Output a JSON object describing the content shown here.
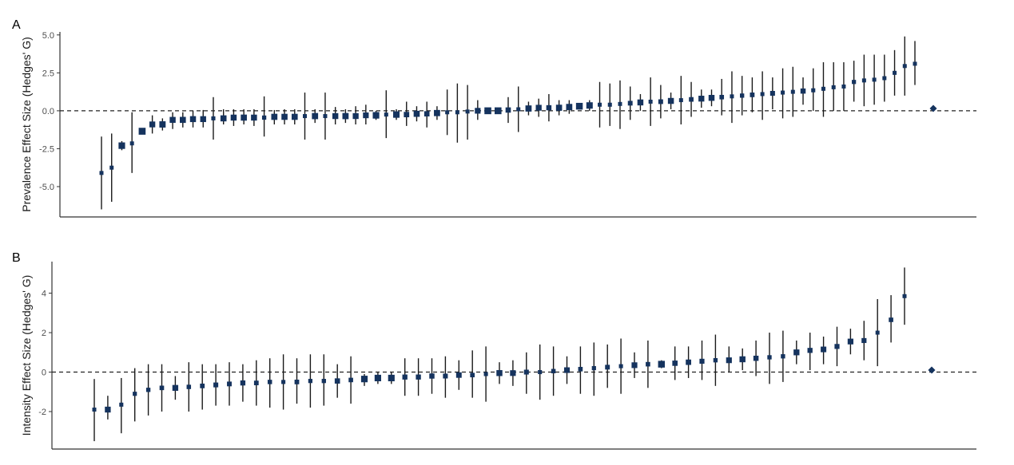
{
  "colors": {
    "point": "#15335e",
    "ci": "#1a1a1a",
    "axis": "#333333"
  },
  "chart_data": [
    {
      "type": "scatter",
      "panel": "A",
      "ylabel": "Prevalence Effect Size (Hedges' G)",
      "ylim": [
        -7,
        5.2
      ],
      "yticks": [
        5.0,
        2.5,
        0.0,
        -2.5,
        -5.0
      ],
      "ytick_labels": [
        "5.0",
        "2.5",
        "0.0",
        "-2.5",
        "-5.0"
      ],
      "reference_line": 0,
      "points": [
        {
          "y": -4.1,
          "lo": -6.5,
          "hi": -1.7
        },
        {
          "y": -3.75,
          "lo": -6.0,
          "hi": -1.5
        },
        {
          "y": -2.3,
          "lo": -2.6,
          "hi": -2.0
        },
        {
          "y": -2.15,
          "lo": -4.1,
          "hi": -0.1
        },
        {
          "y": -1.35,
          "lo": -1.45,
          "hi": -1.2
        },
        {
          "y": -0.9,
          "lo": -1.5,
          "hi": -0.3
        },
        {
          "y": -0.9,
          "lo": -1.3,
          "hi": -0.5
        },
        {
          "y": -0.6,
          "lo": -1.2,
          "hi": -0.1
        },
        {
          "y": -0.6,
          "lo": -1.1,
          "hi": -0.1
        },
        {
          "y": -0.55,
          "lo": -1.1,
          "hi": 0.0
        },
        {
          "y": -0.55,
          "lo": -1.1,
          "hi": 0.05
        },
        {
          "y": -0.5,
          "lo": -1.9,
          "hi": 0.9
        },
        {
          "y": -0.5,
          "lo": -0.9,
          "hi": 0.1
        },
        {
          "y": -0.45,
          "lo": -1.0,
          "hi": 0.1
        },
        {
          "y": -0.45,
          "lo": -0.9,
          "hi": 0.1
        },
        {
          "y": -0.45,
          "lo": -1.0,
          "hi": 0.1
        },
        {
          "y": -0.45,
          "lo": -1.7,
          "hi": 0.95
        },
        {
          "y": -0.4,
          "lo": -0.9,
          "hi": 0.05
        },
        {
          "y": -0.4,
          "lo": -0.9,
          "hi": 0.1
        },
        {
          "y": -0.4,
          "lo": -0.9,
          "hi": 0.1
        },
        {
          "y": -0.35,
          "lo": -1.9,
          "hi": 1.2
        },
        {
          "y": -0.35,
          "lo": -0.8,
          "hi": 0.1
        },
        {
          "y": -0.35,
          "lo": -1.9,
          "hi": 1.2
        },
        {
          "y": -0.35,
          "lo": -0.9,
          "hi": 0.25
        },
        {
          "y": -0.35,
          "lo": -0.8,
          "hi": 0.1
        },
        {
          "y": -0.35,
          "lo": -0.9,
          "hi": 0.3
        },
        {
          "y": -0.3,
          "lo": -0.9,
          "hi": 0.4
        },
        {
          "y": -0.3,
          "lo": -0.6,
          "hi": 0.0
        },
        {
          "y": -0.25,
          "lo": -1.8,
          "hi": 1.35
        },
        {
          "y": -0.25,
          "lo": -0.6,
          "hi": 0.1
        },
        {
          "y": -0.25,
          "lo": -1.0,
          "hi": 0.6
        },
        {
          "y": -0.2,
          "lo": -0.7,
          "hi": 0.3
        },
        {
          "y": -0.2,
          "lo": -1.1,
          "hi": 0.6
        },
        {
          "y": -0.15,
          "lo": -0.6,
          "hi": 0.3
        },
        {
          "y": -0.1,
          "lo": -1.6,
          "hi": 1.4
        },
        {
          "y": -0.1,
          "lo": -2.1,
          "hi": 1.8
        },
        {
          "y": -0.05,
          "lo": -1.9,
          "hi": 1.7
        },
        {
          "y": 0.0,
          "lo": -0.6,
          "hi": 0.7
        },
        {
          "y": 0.0,
          "lo": -0.15,
          "hi": 0.15
        },
        {
          "y": 0.0,
          "lo": -0.15,
          "hi": 0.15
        },
        {
          "y": 0.05,
          "lo": -0.8,
          "hi": 0.9
        },
        {
          "y": 0.1,
          "lo": -1.4,
          "hi": 1.6
        },
        {
          "y": 0.15,
          "lo": -0.3,
          "hi": 0.6
        },
        {
          "y": 0.2,
          "lo": -0.4,
          "hi": 0.8
        },
        {
          "y": 0.2,
          "lo": -0.7,
          "hi": 1.1
        },
        {
          "y": 0.2,
          "lo": -0.3,
          "hi": 0.7
        },
        {
          "y": 0.25,
          "lo": -0.2,
          "hi": 0.7
        },
        {
          "y": 0.3,
          "lo": 0.1,
          "hi": 0.5
        },
        {
          "y": 0.35,
          "lo": 0.0,
          "hi": 0.7
        },
        {
          "y": 0.4,
          "lo": -1.1,
          "hi": 1.9
        },
        {
          "y": 0.4,
          "lo": -1.0,
          "hi": 1.8
        },
        {
          "y": 0.45,
          "lo": -1.2,
          "hi": 2.0
        },
        {
          "y": 0.5,
          "lo": -0.6,
          "hi": 1.6
        },
        {
          "y": 0.55,
          "lo": 0.0,
          "hi": 1.1
        },
        {
          "y": 0.6,
          "lo": -1.0,
          "hi": 2.2
        },
        {
          "y": 0.6,
          "lo": -0.5,
          "hi": 1.7
        },
        {
          "y": 0.65,
          "lo": 0.1,
          "hi": 1.2
        },
        {
          "y": 0.7,
          "lo": -0.9,
          "hi": 2.3
        },
        {
          "y": 0.75,
          "lo": -0.4,
          "hi": 1.9
        },
        {
          "y": 0.8,
          "lo": 0.2,
          "hi": 1.4
        },
        {
          "y": 0.85,
          "lo": 0.3,
          "hi": 1.4
        },
        {
          "y": 0.9,
          "lo": -0.3,
          "hi": 2.1
        },
        {
          "y": 0.95,
          "lo": -0.8,
          "hi": 2.6
        },
        {
          "y": 1.0,
          "lo": -0.3,
          "hi": 2.3
        },
        {
          "y": 1.05,
          "lo": -0.1,
          "hi": 2.2
        },
        {
          "y": 1.1,
          "lo": -0.6,
          "hi": 2.6
        },
        {
          "y": 1.15,
          "lo": 0.1,
          "hi": 2.2
        },
        {
          "y": 1.2,
          "lo": -0.5,
          "hi": 2.8
        },
        {
          "y": 1.25,
          "lo": -0.4,
          "hi": 2.9
        },
        {
          "y": 1.3,
          "lo": 0.4,
          "hi": 2.2
        },
        {
          "y": 1.35,
          "lo": 0.0,
          "hi": 2.8
        },
        {
          "y": 1.45,
          "lo": -0.4,
          "hi": 3.2
        },
        {
          "y": 1.55,
          "lo": 0.0,
          "hi": 3.2
        },
        {
          "y": 1.6,
          "lo": 0.0,
          "hi": 3.2
        },
        {
          "y": 1.9,
          "lo": 0.6,
          "hi": 3.3
        },
        {
          "y": 2.0,
          "lo": 0.3,
          "hi": 3.7
        },
        {
          "y": 2.05,
          "lo": 0.4,
          "hi": 3.7
        },
        {
          "y": 2.15,
          "lo": 0.6,
          "hi": 3.7
        },
        {
          "y": 2.5,
          "lo": 1.0,
          "hi": 4.0
        },
        {
          "y": 2.95,
          "lo": 1.0,
          "hi": 4.9
        },
        {
          "y": 3.1,
          "lo": 1.7,
          "hi": 4.6
        }
      ],
      "pooled": {
        "y": 0.15
      }
    },
    {
      "type": "scatter",
      "panel": "B",
      "ylabel": "Intensity Effect Size (Hedges' G)",
      "ylim": [
        -3.9,
        5.6
      ],
      "yticks": [
        4,
        2,
        0,
        -2
      ],
      "ytick_labels": [
        "4",
        "2",
        "0",
        "-2"
      ],
      "reference_line": 0,
      "points": [
        {
          "y": -1.9,
          "lo": -3.5,
          "hi": -0.35
        },
        {
          "y": -1.9,
          "lo": -2.4,
          "hi": -1.2
        },
        {
          "y": -1.65,
          "lo": -3.1,
          "hi": -0.3
        },
        {
          "y": -1.1,
          "lo": -2.5,
          "hi": 0.2
        },
        {
          "y": -0.9,
          "lo": -2.2,
          "hi": 0.4
        },
        {
          "y": -0.8,
          "lo": -2.0,
          "hi": 0.4
        },
        {
          "y": -0.8,
          "lo": -1.4,
          "hi": -0.2
        },
        {
          "y": -0.75,
          "lo": -2.0,
          "hi": 0.5
        },
        {
          "y": -0.7,
          "lo": -1.9,
          "hi": 0.4
        },
        {
          "y": -0.65,
          "lo": -1.7,
          "hi": 0.4
        },
        {
          "y": -0.6,
          "lo": -1.7,
          "hi": 0.5
        },
        {
          "y": -0.55,
          "lo": -1.5,
          "hi": 0.4
        },
        {
          "y": -0.55,
          "lo": -1.7,
          "hi": 0.6
        },
        {
          "y": -0.5,
          "lo": -1.8,
          "hi": 0.7
        },
        {
          "y": -0.5,
          "lo": -1.9,
          "hi": 0.9
        },
        {
          "y": -0.5,
          "lo": -1.6,
          "hi": 0.7
        },
        {
          "y": -0.45,
          "lo": -1.8,
          "hi": 0.9
        },
        {
          "y": -0.45,
          "lo": -1.7,
          "hi": 0.9
        },
        {
          "y": -0.45,
          "lo": -1.3,
          "hi": 0.4
        },
        {
          "y": -0.4,
          "lo": -1.6,
          "hi": 0.8
        },
        {
          "y": -0.35,
          "lo": -0.7,
          "hi": -0.1
        },
        {
          "y": -0.3,
          "lo": -0.6,
          "hi": 0.0
        },
        {
          "y": -0.3,
          "lo": -0.6,
          "hi": 0.0
        },
        {
          "y": -0.25,
          "lo": -1.2,
          "hi": 0.7
        },
        {
          "y": -0.25,
          "lo": -1.2,
          "hi": 0.7
        },
        {
          "y": -0.2,
          "lo": -1.1,
          "hi": 0.7
        },
        {
          "y": -0.2,
          "lo": -1.3,
          "hi": 0.8
        },
        {
          "y": -0.15,
          "lo": -0.9,
          "hi": 0.6
        },
        {
          "y": -0.15,
          "lo": -1.3,
          "hi": 1.1
        },
        {
          "y": -0.1,
          "lo": -1.5,
          "hi": 1.3
        },
        {
          "y": -0.05,
          "lo": -0.6,
          "hi": 0.5
        },
        {
          "y": -0.05,
          "lo": -0.7,
          "hi": 0.6
        },
        {
          "y": 0.0,
          "lo": -1.1,
          "hi": 1.0
        },
        {
          "y": 0.0,
          "lo": -1.4,
          "hi": 1.4
        },
        {
          "y": 0.05,
          "lo": -1.2,
          "hi": 1.3
        },
        {
          "y": 0.1,
          "lo": -0.6,
          "hi": 0.8
        },
        {
          "y": 0.15,
          "lo": -1.1,
          "hi": 1.3
        },
        {
          "y": 0.2,
          "lo": -1.2,
          "hi": 1.5
        },
        {
          "y": 0.25,
          "lo": -0.8,
          "hi": 1.4
        },
        {
          "y": 0.3,
          "lo": -1.1,
          "hi": 1.7
        },
        {
          "y": 0.35,
          "lo": -0.3,
          "hi": 1.0
        },
        {
          "y": 0.4,
          "lo": -0.8,
          "hi": 1.6
        },
        {
          "y": 0.4,
          "lo": 0.2,
          "hi": 0.6
        },
        {
          "y": 0.45,
          "lo": -0.4,
          "hi": 1.3
        },
        {
          "y": 0.5,
          "lo": -0.3,
          "hi": 1.3
        },
        {
          "y": 0.55,
          "lo": -0.4,
          "hi": 1.6
        },
        {
          "y": 0.6,
          "lo": -0.7,
          "hi": 1.9
        },
        {
          "y": 0.6,
          "lo": 0.0,
          "hi": 1.3
        },
        {
          "y": 0.65,
          "lo": 0.1,
          "hi": 1.2
        },
        {
          "y": 0.7,
          "lo": -0.2,
          "hi": 1.6
        },
        {
          "y": 0.75,
          "lo": -0.6,
          "hi": 2.0
        },
        {
          "y": 0.8,
          "lo": -0.5,
          "hi": 2.1
        },
        {
          "y": 1.0,
          "lo": 0.4,
          "hi": 1.6
        },
        {
          "y": 1.1,
          "lo": 0.1,
          "hi": 2.0
        },
        {
          "y": 1.15,
          "lo": 0.4,
          "hi": 1.8
        },
        {
          "y": 1.3,
          "lo": 0.3,
          "hi": 2.3
        },
        {
          "y": 1.55,
          "lo": 0.9,
          "hi": 2.2
        },
        {
          "y": 1.6,
          "lo": 0.6,
          "hi": 2.6
        },
        {
          "y": 2.0,
          "lo": 0.3,
          "hi": 3.7
        },
        {
          "y": 2.65,
          "lo": 1.5,
          "hi": 3.9
        },
        {
          "y": 3.85,
          "lo": 2.4,
          "hi": 5.3
        }
      ],
      "pooled": {
        "y": 0.1
      }
    }
  ]
}
